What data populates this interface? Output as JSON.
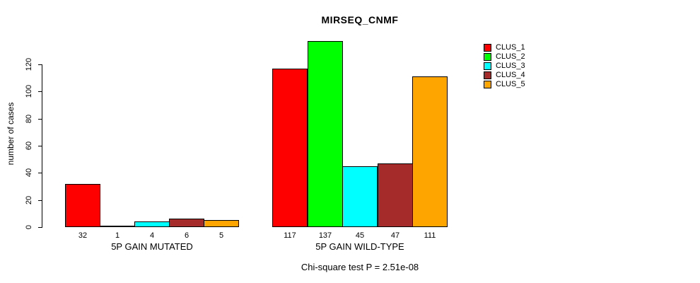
{
  "page": {
    "background": "#FFFFFF",
    "text_color": "#000000"
  },
  "chart_data": {
    "type": "bar",
    "title": "MIRSEQ_CNMF",
    "ylabel": "number of cases",
    "xlabel": "",
    "categories": [
      "5P GAIN MUTATED",
      "5P GAIN WILD-TYPE"
    ],
    "series": [
      {
        "name": "CLUS_1",
        "color": "#FF0000",
        "values": [
          32,
          117
        ]
      },
      {
        "name": "CLUS_2",
        "color": "#00FF00",
        "values": [
          1,
          137
        ]
      },
      {
        "name": "CLUS_3",
        "color": "#00FFFF",
        "values": [
          4,
          45
        ]
      },
      {
        "name": "CLUS_4",
        "color": "#A52A2A",
        "values": [
          6,
          47
        ]
      },
      {
        "name": "CLUS_5",
        "color": "#FFA500",
        "values": [
          5,
          111
        ]
      }
    ],
    "bar_value_labels": [
      [
        "32",
        "1",
        "4",
        "6",
        "5"
      ],
      [
        "117",
        "137",
        "45",
        "47",
        "111"
      ]
    ],
    "yticks": [
      0,
      20,
      40,
      60,
      80,
      100,
      120
    ],
    "ylim": [
      0,
      140
    ],
    "grid": false,
    "legend_position": "top-right",
    "legend_entries": [
      "CLUS_1",
      "CLUS_2",
      "CLUS_3",
      "CLUS_4",
      "CLUS_5"
    ],
    "annotation": "Chi-square test P = 2.51e-08",
    "axis_color": "#000000",
    "bar_border_color": "#000000"
  }
}
